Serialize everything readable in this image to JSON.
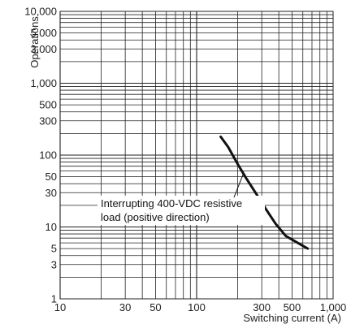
{
  "chart_data": {
    "type": "line",
    "title_partial": "",
    "ylabel": "Operations",
    "xlabel": "Switching current (A)",
    "x_scale": "log",
    "y_scale": "log",
    "xlim": [
      10,
      1000
    ],
    "ylim": [
      1,
      10000
    ],
    "grid": true,
    "x_ticks": [
      {
        "value": 10,
        "label": "10"
      },
      {
        "value": 30,
        "label": "30"
      },
      {
        "value": 50,
        "label": "50"
      },
      {
        "value": 100,
        "label": "100"
      },
      {
        "value": 300,
        "label": "300"
      },
      {
        "value": 500,
        "label": "500"
      },
      {
        "value": 1000,
        "label": "1,000"
      }
    ],
    "y_ticks": [
      {
        "value": 1,
        "label": "1"
      },
      {
        "value": 3,
        "label": "3"
      },
      {
        "value": 5,
        "label": "5"
      },
      {
        "value": 10,
        "label": "10"
      },
      {
        "value": 30,
        "label": "30"
      },
      {
        "value": 50,
        "label": "50"
      },
      {
        "value": 100,
        "label": "100"
      },
      {
        "value": 300,
        "label": "300"
      },
      {
        "value": 500,
        "label": "500"
      },
      {
        "value": 1000,
        "label": "1,000"
      },
      {
        "value": 3000,
        "label": "3,000"
      },
      {
        "value": 5000,
        "label": "5,000"
      },
      {
        "value": 10000,
        "label": "10,000"
      }
    ],
    "series": [
      {
        "name": "",
        "x": [
          150,
          170,
          200,
          230,
          270,
          320,
          380,
          450,
          550,
          650
        ],
        "y": [
          180,
          130,
          75,
          48,
          30,
          18,
          11,
          7.5,
          6,
          5
        ]
      }
    ],
    "annotation": {
      "line1": "Interrupting 400-VDC resistive",
      "line2": "load (positive direction)"
    },
    "line_color": "#111111",
    "grid_color": "#222222"
  }
}
